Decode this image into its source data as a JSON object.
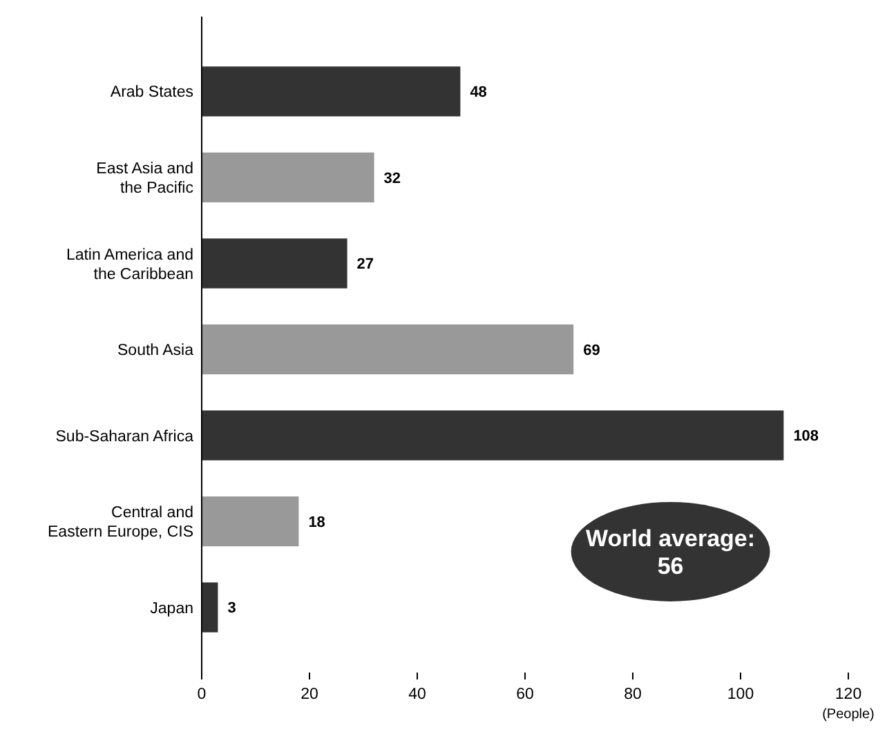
{
  "chart_data": {
    "type": "bar",
    "orientation": "horizontal",
    "xlabel": "(People)",
    "categories": [
      "Arab States",
      "East Asia and\nthe Pacific",
      "Latin America and\nthe Caribbean",
      "South Asia",
      "Sub-Saharan Africa",
      "Central and\nEastern Europe, CIS",
      "Japan"
    ],
    "values": [
      48,
      32,
      27,
      69,
      108,
      18,
      3
    ],
    "colors": [
      "#333333",
      "#999999",
      "#333333",
      "#999999",
      "#333333",
      "#999999",
      "#333333"
    ],
    "xlim": [
      0,
      120
    ],
    "xticks": [
      0,
      20,
      40,
      60,
      80,
      100,
      120
    ],
    "data_labels": true,
    "annotations": [
      "World average:\n56"
    ]
  }
}
